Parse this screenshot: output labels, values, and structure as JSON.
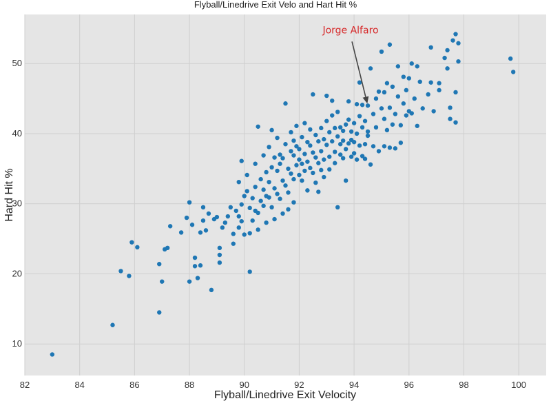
{
  "chart_data": {
    "type": "scatter",
    "title": "Flyball/Linedrive Exit Velo and Hart Hit %",
    "xlabel": "Flyball/Linedrive Exit Velocity",
    "ylabel": "Hard Hit %",
    "xlim": [
      82,
      101
    ],
    "ylim": [
      5.5,
      57
    ],
    "xticks": [
      82,
      84,
      86,
      88,
      90,
      92,
      94,
      96,
      98,
      100
    ],
    "yticks": [
      10,
      20,
      30,
      40,
      50
    ],
    "grid": true,
    "colors": {
      "marker": "#1f77b4",
      "annotation": "#d62728",
      "background": "#e5e5e5",
      "gridline": "#cfcfcf",
      "arrow": "#444444"
    },
    "annotation": {
      "text": "Jorge Alfaro",
      "x": 94.5,
      "y": 44
    },
    "points": [
      [
        83.0,
        8.5
      ],
      [
        85.2,
        12.7
      ],
      [
        85.5,
        20.4
      ],
      [
        85.8,
        19.7
      ],
      [
        85.9,
        24.5
      ],
      [
        86.1,
        23.8
      ],
      [
        86.9,
        14.5
      ],
      [
        86.9,
        21.4
      ],
      [
        87.0,
        18.9
      ],
      [
        87.1,
        23.5
      ],
      [
        87.2,
        23.7
      ],
      [
        87.3,
        26.8
      ],
      [
        87.7,
        25.9
      ],
      [
        87.9,
        28.0
      ],
      [
        88.0,
        30.2
      ],
      [
        88.0,
        18.9
      ],
      [
        88.1,
        27.0
      ],
      [
        88.2,
        22.3
      ],
      [
        88.2,
        21.1
      ],
      [
        88.3,
        19.4
      ],
      [
        88.4,
        25.9
      ],
      [
        88.4,
        21.2
      ],
      [
        88.5,
        29.5
      ],
      [
        88.5,
        27.6
      ],
      [
        88.6,
        26.2
      ],
      [
        88.7,
        28.6
      ],
      [
        88.8,
        17.7
      ],
      [
        88.9,
        27.8
      ],
      [
        89.0,
        28.1
      ],
      [
        89.1,
        22.7
      ],
      [
        89.1,
        23.7
      ],
      [
        89.1,
        21.6
      ],
      [
        89.2,
        26.6
      ],
      [
        89.3,
        27.3
      ],
      [
        89.4,
        28.2
      ],
      [
        89.5,
        29.5
      ],
      [
        89.6,
        25.7
      ],
      [
        89.6,
        24.3
      ],
      [
        89.7,
        29.0
      ],
      [
        89.8,
        28.2
      ],
      [
        89.8,
        26.6
      ],
      [
        89.9,
        29.9
      ],
      [
        89.9,
        27.5
      ],
      [
        89.8,
        33.1
      ],
      [
        89.9,
        36.1
      ],
      [
        90.0,
        25.6
      ],
      [
        90.0,
        31.1
      ],
      [
        90.1,
        31.8
      ],
      [
        90.1,
        34.1
      ],
      [
        90.2,
        25.8
      ],
      [
        90.2,
        29.4
      ],
      [
        90.2,
        20.3
      ],
      [
        90.3,
        30.8
      ],
      [
        90.3,
        27.6
      ],
      [
        90.4,
        32.4
      ],
      [
        90.4,
        29.0
      ],
      [
        90.4,
        35.7
      ],
      [
        90.5,
        26.3
      ],
      [
        90.5,
        28.7
      ],
      [
        90.5,
        41.0
      ],
      [
        90.6,
        33.5
      ],
      [
        90.6,
        30.4
      ],
      [
        90.7,
        32.0
      ],
      [
        90.7,
        36.9
      ],
      [
        90.7,
        29.7
      ],
      [
        90.8,
        31.1
      ],
      [
        90.8,
        27.3
      ],
      [
        90.8,
        34.5
      ],
      [
        90.9,
        30.9
      ],
      [
        90.9,
        38.1
      ],
      [
        90.9,
        33.1
      ],
      [
        91.0,
        35.2
      ],
      [
        91.0,
        40.5
      ],
      [
        91.0,
        29.5
      ],
      [
        91.1,
        32.2
      ],
      [
        91.1,
        27.8
      ],
      [
        91.1,
        36.6
      ],
      [
        91.2,
        31.4
      ],
      [
        91.2,
        34.7
      ],
      [
        91.2,
        39.4
      ],
      [
        91.3,
        30.7
      ],
      [
        91.3,
        35.7
      ],
      [
        91.3,
        37.0
      ],
      [
        91.4,
        33.3
      ],
      [
        91.4,
        36.5
      ],
      [
        91.4,
        28.6
      ],
      [
        91.5,
        32.6
      ],
      [
        91.5,
        38.5
      ],
      [
        91.5,
        44.3
      ],
      [
        91.6,
        35.0
      ],
      [
        91.6,
        29.2
      ],
      [
        91.6,
        31.6
      ],
      [
        91.7,
        34.3
      ],
      [
        91.7,
        37.5
      ],
      [
        91.7,
        40.2
      ],
      [
        91.8,
        33.5
      ],
      [
        91.8,
        36.9
      ],
      [
        91.8,
        39.0
      ],
      [
        91.8,
        30.2
      ],
      [
        91.9,
        35.5
      ],
      [
        91.9,
        38.2
      ],
      [
        91.9,
        41.1
      ],
      [
        92.0,
        34.1
      ],
      [
        92.0,
        36.3
      ],
      [
        92.0,
        37.8
      ],
      [
        92.1,
        33.3
      ],
      [
        92.1,
        35.7
      ],
      [
        92.1,
        39.5
      ],
      [
        92.2,
        34.7
      ],
      [
        92.2,
        37.1
      ],
      [
        92.2,
        41.5
      ],
      [
        92.3,
        36.0
      ],
      [
        92.3,
        38.8
      ],
      [
        92.3,
        31.9
      ],
      [
        92.4,
        35.1
      ],
      [
        92.4,
        38.3
      ],
      [
        92.4,
        40.6
      ],
      [
        92.5,
        34.4
      ],
      [
        92.5,
        37.3
      ],
      [
        92.5,
        45.6
      ],
      [
        92.6,
        36.6
      ],
      [
        92.6,
        39.8
      ],
      [
        92.6,
        33.0
      ],
      [
        92.7,
        35.8
      ],
      [
        92.7,
        38.9
      ],
      [
        92.7,
        31.7
      ],
      [
        92.8,
        37.5
      ],
      [
        92.8,
        40.8
      ],
      [
        92.8,
        34.8
      ],
      [
        92.9,
        36.3
      ],
      [
        92.9,
        39.2
      ],
      [
        92.9,
        33.8
      ],
      [
        93.0,
        38.4
      ],
      [
        93.0,
        41.8
      ],
      [
        93.0,
        45.4
      ],
      [
        93.1,
        36.7
      ],
      [
        93.1,
        40.2
      ],
      [
        93.1,
        34.9
      ],
      [
        93.2,
        38.9
      ],
      [
        93.2,
        42.6
      ],
      [
        93.2,
        44.7
      ],
      [
        93.3,
        37.4
      ],
      [
        93.3,
        40.8
      ],
      [
        93.3,
        35.8
      ],
      [
        93.4,
        39.6
      ],
      [
        93.4,
        43.1
      ],
      [
        93.4,
        29.5
      ],
      [
        93.5,
        37.0
      ],
      [
        93.5,
        40.9
      ],
      [
        93.5,
        38.5
      ],
      [
        93.6,
        36.5
      ],
      [
        93.6,
        40.4
      ],
      [
        93.6,
        39.0
      ],
      [
        93.7,
        37.8
      ],
      [
        93.7,
        41.3
      ],
      [
        93.7,
        33.3
      ],
      [
        93.8,
        38.6
      ],
      [
        93.8,
        42.0
      ],
      [
        93.8,
        44.6
      ],
      [
        93.9,
        36.7
      ],
      [
        93.9,
        40.3
      ],
      [
        93.9,
        39.1
      ],
      [
        94.0,
        37.2
      ],
      [
        94.0,
        41.5
      ],
      [
        94.0,
        38.8
      ],
      [
        94.1,
        36.3
      ],
      [
        94.1,
        40.0
      ],
      [
        94.1,
        44.2
      ],
      [
        94.2,
        38.3
      ],
      [
        94.2,
        42.5
      ],
      [
        94.2,
        47.3
      ],
      [
        94.3,
        36.8
      ],
      [
        94.3,
        40.9
      ],
      [
        94.3,
        44.1
      ],
      [
        94.4,
        38.5
      ],
      [
        94.4,
        41.8
      ],
      [
        94.4,
        36.4
      ],
      [
        94.5,
        40.3
      ],
      [
        94.5,
        44.0
      ],
      [
        94.5,
        39.7
      ],
      [
        94.6,
        35.6
      ],
      [
        94.6,
        49.3
      ],
      [
        94.7,
        38.2
      ],
      [
        94.7,
        42.8
      ],
      [
        94.8,
        45.0
      ],
      [
        94.8,
        40.9
      ],
      [
        94.9,
        37.5
      ],
      [
        94.9,
        46.0
      ],
      [
        95.0,
        43.6
      ],
      [
        95.0,
        51.7
      ],
      [
        95.1,
        38.2
      ],
      [
        95.1,
        42.1
      ],
      [
        95.1,
        45.9
      ],
      [
        95.2,
        40.5
      ],
      [
        95.2,
        47.2
      ],
      [
        95.3,
        38.0
      ],
      [
        95.3,
        43.7
      ],
      [
        95.3,
        52.7
      ],
      [
        95.4,
        41.3
      ],
      [
        95.4,
        46.7
      ],
      [
        95.5,
        37.9
      ],
      [
        95.5,
        42.8
      ],
      [
        95.6,
        45.3
      ],
      [
        95.6,
        49.6
      ],
      [
        95.7,
        41.2
      ],
      [
        95.7,
        38.7
      ],
      [
        95.8,
        44.3
      ],
      [
        95.8,
        48.1
      ],
      [
        95.9,
        42.6
      ],
      [
        95.9,
        46.2
      ],
      [
        96.0,
        43.2
      ],
      [
        96.0,
        47.9
      ],
      [
        96.1,
        42.9
      ],
      [
        96.1,
        50.0
      ],
      [
        96.2,
        45.0
      ],
      [
        96.3,
        41.1
      ],
      [
        96.3,
        49.6
      ],
      [
        96.4,
        47.4
      ],
      [
        96.5,
        43.6
      ],
      [
        96.7,
        45.6
      ],
      [
        96.8,
        52.3
      ],
      [
        96.8,
        47.3
      ],
      [
        96.9,
        43.2
      ],
      [
        97.1,
        46.2
      ],
      [
        97.1,
        47.2
      ],
      [
        97.3,
        50.8
      ],
      [
        97.4,
        51.9
      ],
      [
        97.4,
        49.3
      ],
      [
        97.5,
        42.1
      ],
      [
        97.5,
        43.7
      ],
      [
        97.6,
        53.3
      ],
      [
        97.7,
        41.6
      ],
      [
        97.7,
        45.9
      ],
      [
        97.7,
        54.2
      ],
      [
        97.8,
        52.9
      ],
      [
        97.8,
        50.3
      ],
      [
        99.7,
        50.7
      ],
      [
        99.8,
        48.8
      ]
    ]
  }
}
